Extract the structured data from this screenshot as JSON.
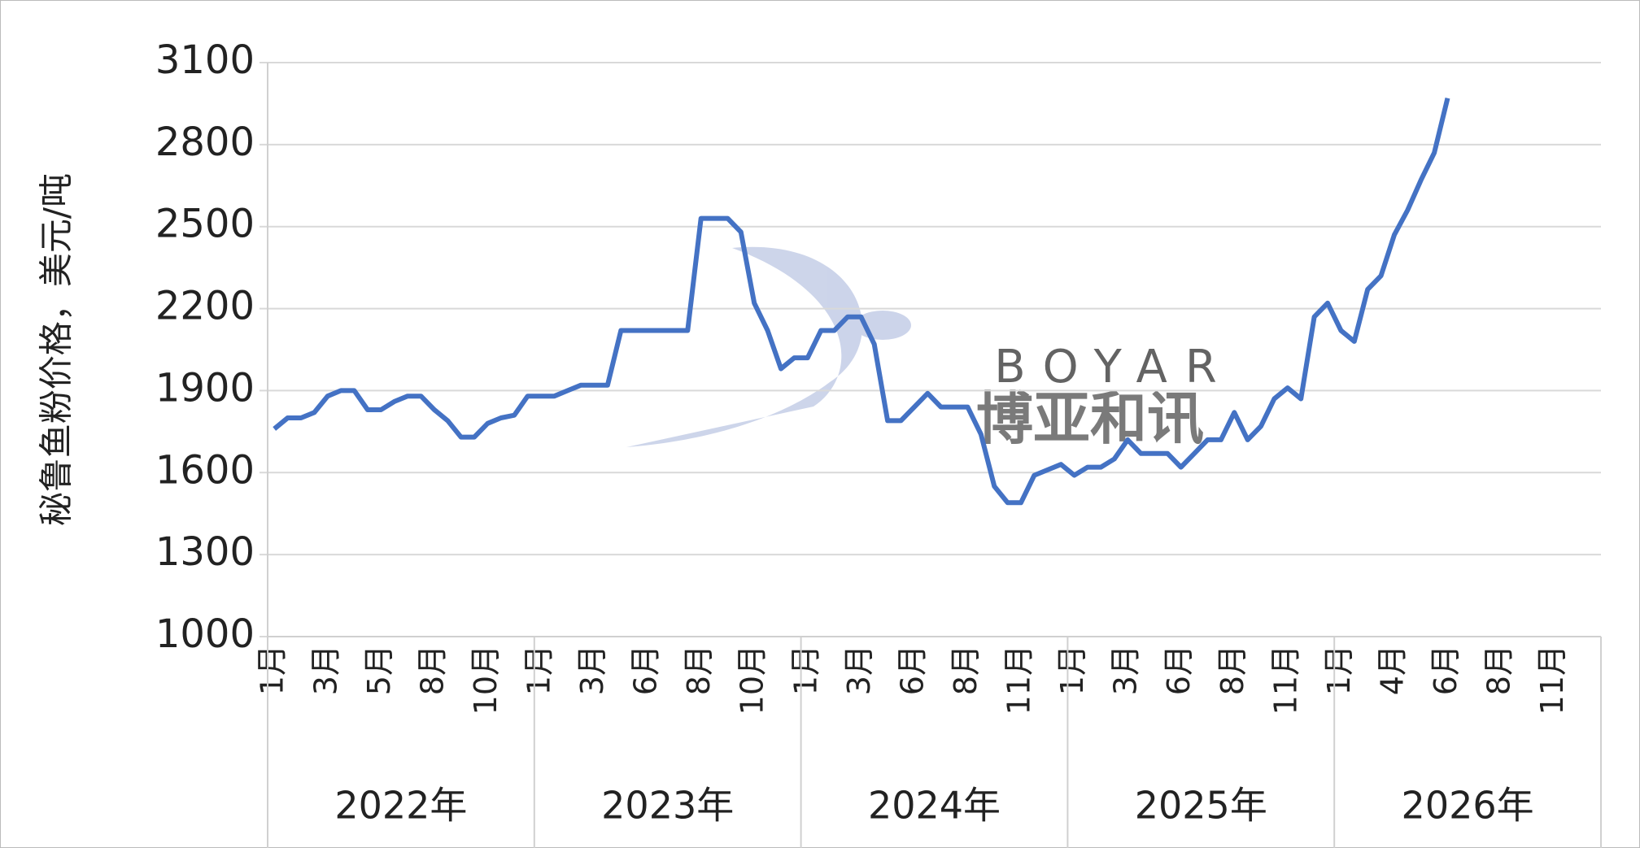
{
  "chart_data": {
    "type": "line",
    "y_label": "秘鲁鱼粉价格，美元/吨",
    "annotations": [
      "BOYAR",
      "博亚和讯"
    ],
    "x": [
      "1月",
      null,
      null,
      null,
      "3月",
      null,
      null,
      null,
      "5月",
      null,
      null,
      null,
      "8月",
      null,
      null,
      null,
      "10月",
      null,
      null,
      null,
      "1月",
      null,
      null,
      null,
      "3月",
      null,
      null,
      null,
      "6月",
      null,
      null,
      null,
      "8月",
      null,
      null,
      null,
      "10月",
      null,
      null,
      null,
      "1月",
      null,
      null,
      null,
      "3月",
      null,
      null,
      null,
      "6月",
      null,
      null,
      null,
      "8月",
      null,
      null,
      null,
      "11月",
      null,
      null,
      null,
      "1月",
      null,
      null,
      null,
      "3月",
      null,
      null,
      null,
      "6月",
      null,
      null,
      null,
      "8月",
      null,
      null,
      null,
      "11月",
      null,
      null,
      null,
      "1月",
      null,
      null,
      null,
      "4月",
      null,
      null,
      null,
      "6月",
      null,
      null,
      null,
      "8月",
      null,
      null,
      null,
      "11月",
      null,
      null,
      null
    ],
    "years": [
      "2022年",
      "2023年",
      "2024年",
      "2025年",
      "2026年"
    ],
    "series": [
      {
        "name": "秘鲁鱼粉价格",
        "color": "#4472c4",
        "values": [
          1760,
          1800,
          1800,
          1820,
          1880,
          1900,
          1900,
          1830,
          1830,
          1860,
          1880,
          1880,
          1830,
          1790,
          1730,
          1730,
          1780,
          1800,
          1810,
          1880,
          1880,
          1880,
          1900,
          1920,
          1920,
          1920,
          2120,
          2120,
          2120,
          2120,
          2120,
          2120,
          2530,
          2530,
          2530,
          2480,
          2220,
          2120,
          1980,
          2020,
          2020,
          2120,
          2120,
          2170,
          2170,
          2070,
          1790,
          1790,
          1840,
          1890,
          1840,
          1840,
          1840,
          1740,
          1550,
          1490,
          1490,
          1590,
          1610,
          1630,
          1590,
          1620,
          1620,
          1650,
          1720,
          1670,
          1670,
          1670,
          1620,
          1670,
          1720,
          1720,
          1820,
          1720,
          1770,
          1870,
          1910,
          1870,
          2170,
          2220,
          2120,
          2080,
          2270,
          2320,
          2470,
          2560,
          2670,
          2770,
          2970,
          null,
          null,
          null,
          null,
          null,
          null,
          null,
          null,
          null,
          null,
          null
        ]
      }
    ],
    "ylim": [
      1000,
      3100
    ],
    "yticks": [
      1000,
      1300,
      1600,
      1900,
      2200,
      2500,
      2800,
      3100
    ],
    "grid": true
  }
}
